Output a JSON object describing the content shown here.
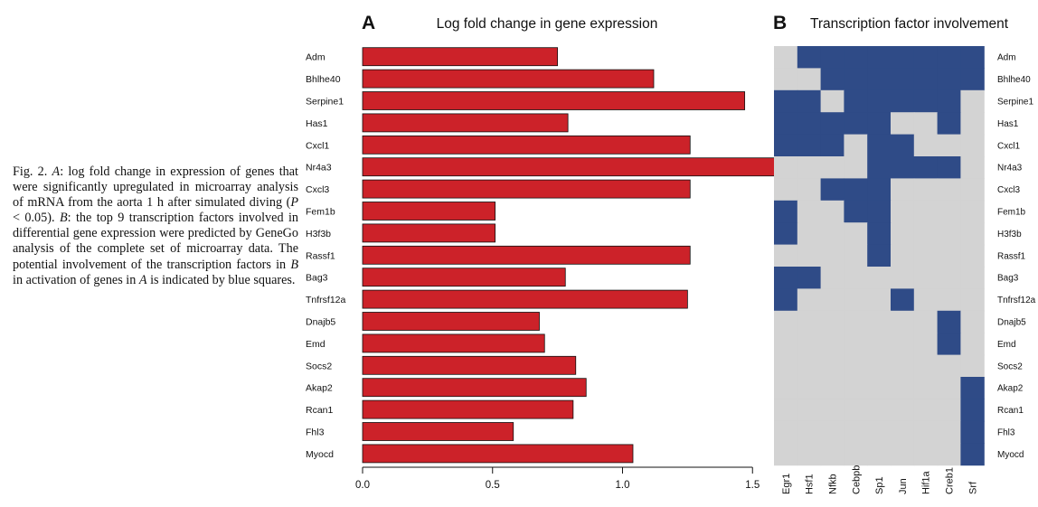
{
  "caption": {
    "fig_label": "Fig. 2.",
    "segments": [
      {
        "text": "Fig. 2. "
      },
      {
        "text": "A",
        "italic": true
      },
      {
        "text": ": log fold change in expression of genes that were significantly upregulated in microarray analysis of mRNA from the aorta 1 h after simulated diving ("
      },
      {
        "text": "P",
        "italic": true
      },
      {
        "text": " < 0.05). "
      },
      {
        "text": "B",
        "italic": true
      },
      {
        "text": ": the top 9 transcription factors involved in differential gene expression were predicted by GeneGo analysis of the complete set of microarray data. The potential involvement of the transcription factors in "
      },
      {
        "text": "B",
        "italic": true
      },
      {
        "text": " in activation of genes in "
      },
      {
        "text": "A",
        "italic": true
      },
      {
        "text": " is indicated by blue squares."
      }
    ]
  },
  "colors": {
    "bar_fill": "#cc2229",
    "heat_on": "#2f4b87",
    "heat_off": "#d3d3d3",
    "text": "#111111"
  },
  "chart_data": [
    {
      "type": "bar",
      "orientation": "horizontal",
      "panel_label": "A",
      "title": "Log fold change in gene expression",
      "categories": [
        "Adm",
        "Bhlhe40",
        "Serpine1",
        "Has1",
        "Cxcl1",
        "Nr4a3",
        "Cxcl3",
        "Fem1b",
        "H3f3b",
        "Rassf1",
        "Bag3",
        "Tnfrsf12a",
        "Dnajb5",
        "Emd",
        "Socs2",
        "Akap2",
        "Rcan1",
        "Fhl3",
        "Myocd"
      ],
      "values": [
        0.75,
        1.12,
        1.47,
        0.79,
        1.26,
        1.69,
        1.26,
        0.51,
        0.51,
        1.26,
        0.78,
        1.25,
        0.68,
        0.7,
        0.82,
        0.86,
        0.81,
        0.58,
        1.04
      ],
      "xlim": [
        0,
        1.69
      ],
      "xticks": [
        "0.0",
        "0.5",
        "1.0",
        "1.5"
      ],
      "xtick_values": [
        0,
        0.5,
        1.0,
        1.5
      ]
    },
    {
      "type": "heatmap",
      "panel_label": "B",
      "title": "Transcription factor involvement",
      "rows": [
        "Adm",
        "Bhlhe40",
        "Serpine1",
        "Has1",
        "Cxcl1",
        "Nr4a3",
        "Cxcl3",
        "Fem1b",
        "H3f3b",
        "Rassf1",
        "Bag3",
        "Tnfrsf12a",
        "Dnajb5",
        "Emd",
        "Socs2",
        "Akap2",
        "Rcan1",
        "Fhl3",
        "Myocd"
      ],
      "columns": [
        "Egr1",
        "Hsf1",
        "Nfkb",
        "Cebpb",
        "Sp1",
        "Jun",
        "Hif1a",
        "Creb1",
        "Srf"
      ],
      "matrix": [
        [
          0,
          1,
          1,
          1,
          1,
          1,
          1,
          1,
          1
        ],
        [
          0,
          0,
          1,
          1,
          1,
          1,
          1,
          1,
          1
        ],
        [
          1,
          1,
          0,
          1,
          1,
          1,
          1,
          1,
          0
        ],
        [
          1,
          1,
          1,
          1,
          1,
          0,
          0,
          1,
          0
        ],
        [
          1,
          1,
          1,
          0,
          1,
          1,
          0,
          0,
          0
        ],
        [
          0,
          0,
          0,
          0,
          1,
          1,
          1,
          1,
          0
        ],
        [
          0,
          0,
          1,
          1,
          1,
          0,
          0,
          0,
          0
        ],
        [
          1,
          0,
          0,
          1,
          1,
          0,
          0,
          0,
          0
        ],
        [
          1,
          0,
          0,
          0,
          1,
          0,
          0,
          0,
          0
        ],
        [
          0,
          0,
          0,
          0,
          1,
          0,
          0,
          0,
          0
        ],
        [
          1,
          1,
          0,
          0,
          0,
          0,
          0,
          0,
          0
        ],
        [
          1,
          0,
          0,
          0,
          0,
          1,
          0,
          0,
          0
        ],
        [
          0,
          0,
          0,
          0,
          0,
          0,
          0,
          1,
          0
        ],
        [
          0,
          0,
          0,
          0,
          0,
          0,
          0,
          1,
          0
        ],
        [
          0,
          0,
          0,
          0,
          0,
          0,
          0,
          0,
          0
        ],
        [
          0,
          0,
          0,
          0,
          0,
          0,
          0,
          0,
          1
        ],
        [
          0,
          0,
          0,
          0,
          0,
          0,
          0,
          0,
          1
        ],
        [
          0,
          0,
          0,
          0,
          0,
          0,
          0,
          0,
          1
        ],
        [
          0,
          0,
          0,
          0,
          0,
          0,
          0,
          0,
          1
        ]
      ]
    }
  ]
}
